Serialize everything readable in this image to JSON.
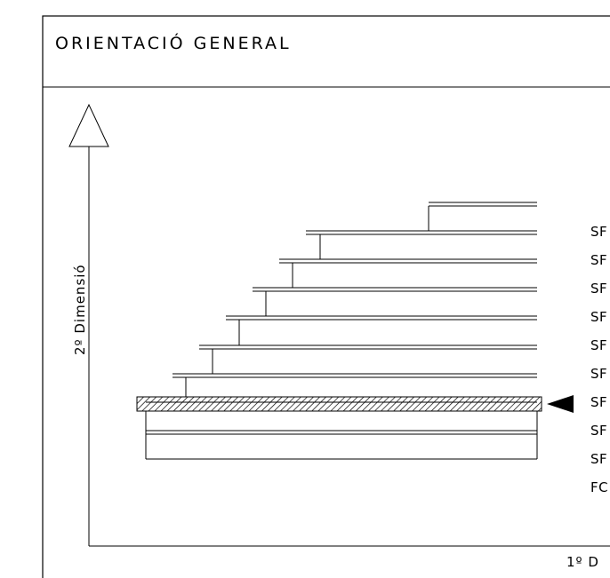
{
  "title": "ORIENTACIÓ GENERAL",
  "axis_y_label": "2º Dimensió",
  "axis_x_label": "1º D",
  "levels": [
    {
      "label": "SF"
    },
    {
      "label": "SF"
    },
    {
      "label": "SF"
    },
    {
      "label": "SF"
    },
    {
      "label": "SF"
    },
    {
      "label": "SF"
    },
    {
      "label": "SF"
    },
    {
      "label": "SF",
      "highlighted": true
    },
    {
      "label": "SF"
    },
    {
      "label": "FC"
    }
  ],
  "colors": {
    "line": "#000000",
    "background": "#ffffff",
    "hatch": "#000000"
  }
}
